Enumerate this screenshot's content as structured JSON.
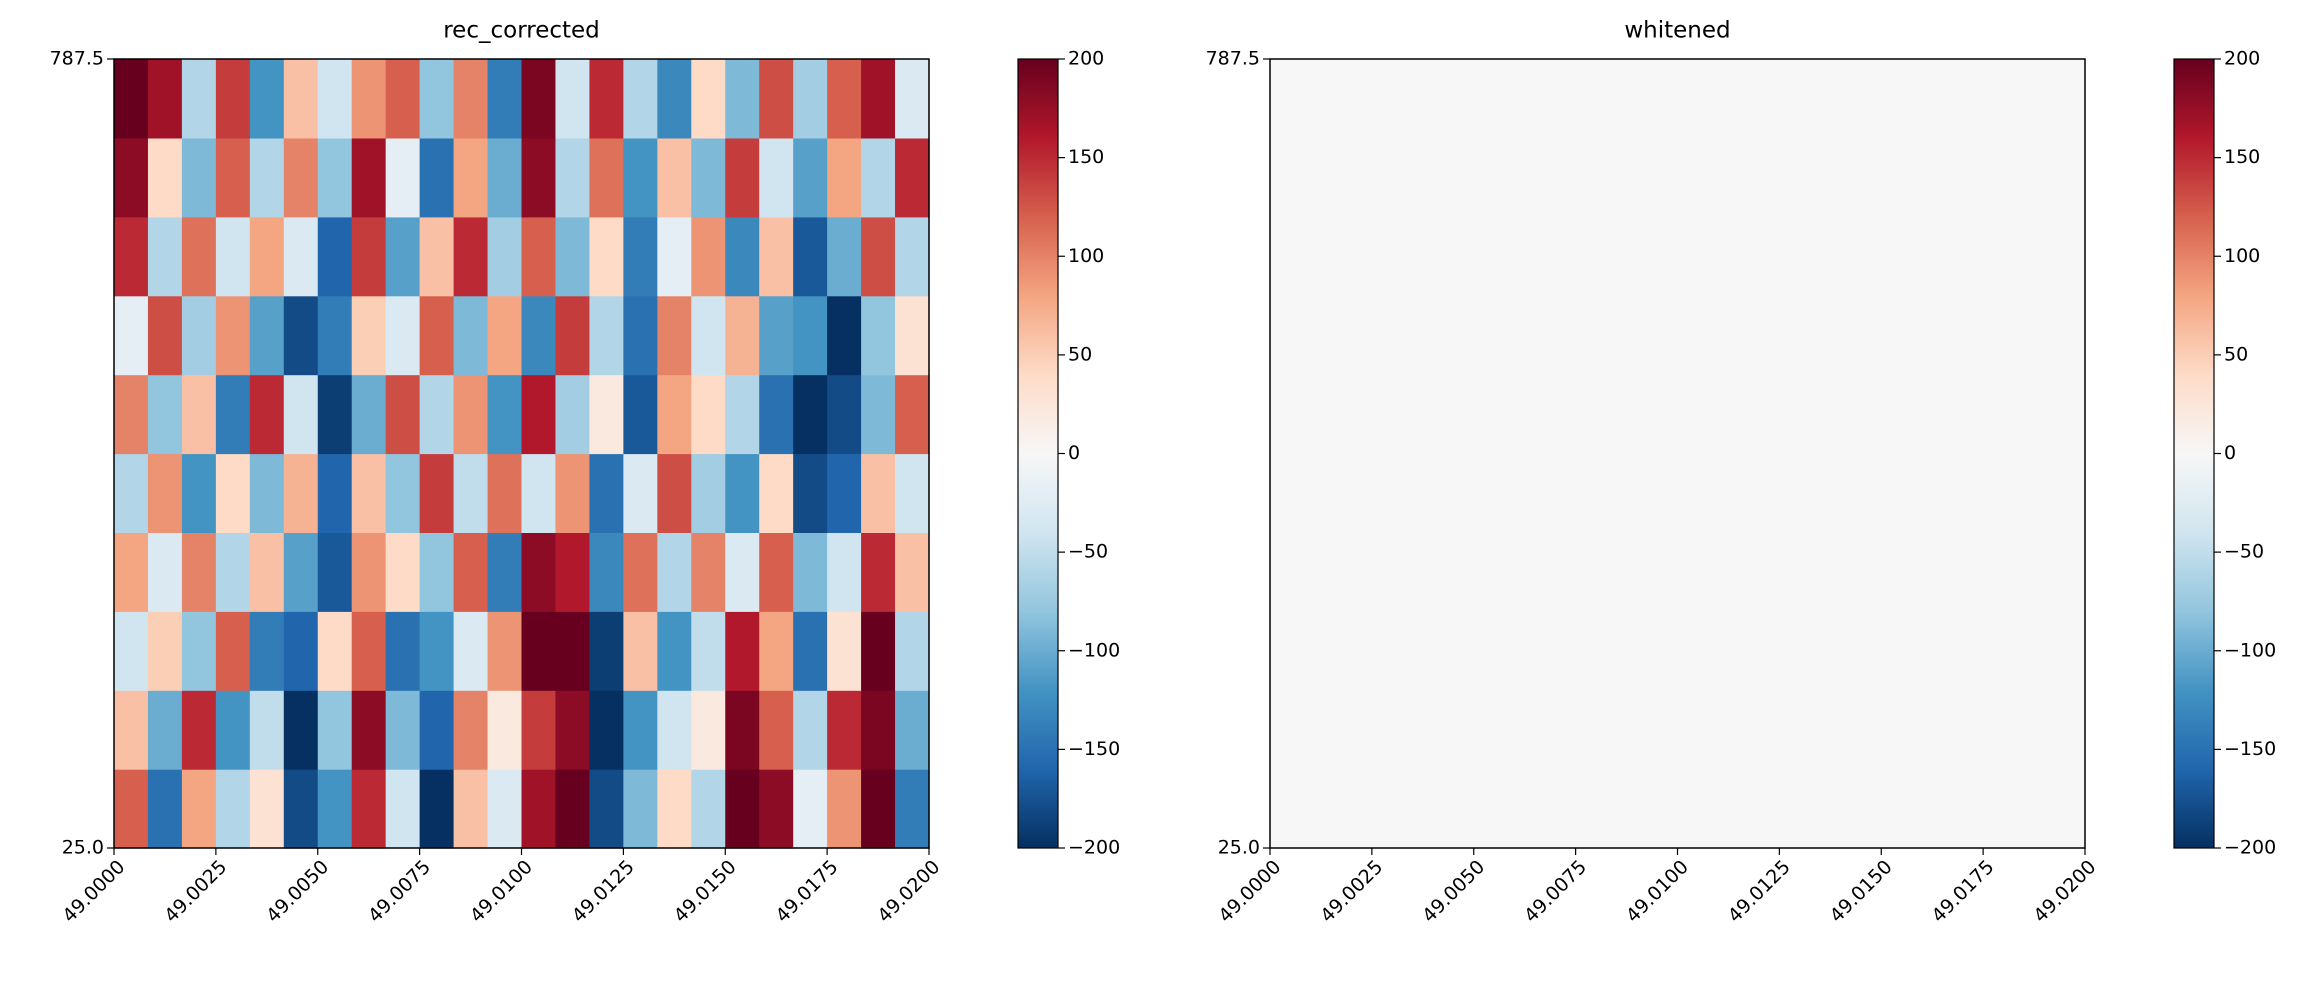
{
  "chart_data": [
    {
      "type": "heatmap",
      "title": "rec_corrected",
      "xlim": [
        49.0,
        49.02
      ],
      "ylim": [
        25.0,
        787.5
      ],
      "xticks": [
        {
          "value": 49.0,
          "label": "49.0000"
        },
        {
          "value": 49.0025,
          "label": "49.0025"
        },
        {
          "value": 49.005,
          "label": "49.0050"
        },
        {
          "value": 49.0075,
          "label": "49.0075"
        },
        {
          "value": 49.01,
          "label": "49.0100"
        },
        {
          "value": 49.0125,
          "label": "49.0125"
        },
        {
          "value": 49.015,
          "label": "49.0150"
        },
        {
          "value": 49.0175,
          "label": "49.0175"
        },
        {
          "value": 49.02,
          "label": "49.0200"
        }
      ],
      "yticks": [
        {
          "value": 25.0,
          "label": "25.0"
        },
        {
          "value": 787.5,
          "label": "787.5"
        }
      ],
      "colormap": [
        "#053061",
        "#2166ac",
        "#4393c3",
        "#92c5de",
        "#d1e5f0",
        "#f7f7f7",
        "#fddbc7",
        "#f4a582",
        "#d6604d",
        "#b2182b",
        "#67001f"
      ],
      "colorbar": {
        "lim": [
          -200,
          200
        ],
        "ticks": [
          {
            "value": -200,
            "label": "−200"
          },
          {
            "value": -150,
            "label": "−150"
          },
          {
            "value": -100,
            "label": "−100"
          },
          {
            "value": -50,
            "label": "−50"
          },
          0,
          50,
          100,
          150,
          200
        ]
      },
      "values": [
        [
          120,
          -150,
          80,
          -60,
          30,
          -180,
          -120,
          150,
          -40,
          -200,
          60,
          -30,
          170,
          200,
          -180,
          -90,
          40,
          -60,
          200,
          180,
          -20,
          90,
          200,
          -140
        ],
        [
          60,
          -100,
          150,
          -120,
          -50,
          -200,
          -80,
          180,
          -90,
          -160,
          100,
          20,
          140,
          180,
          -200,
          -120,
          -40,
          20,
          190,
          120,
          -60,
          150,
          190,
          -100
        ],
        [
          -40,
          50,
          -80,
          120,
          -140,
          -160,
          40,
          120,
          -150,
          -120,
          -30,
          90,
          200,
          200,
          -190,
          60,
          -120,
          -50,
          160,
          80,
          -150,
          30,
          200,
          -60
        ],
        [
          80,
          -30,
          100,
          -60,
          60,
          -110,
          -170,
          90,
          40,
          -80,
          120,
          -140,
          180,
          160,
          -130,
          110,
          -60,
          100,
          -30,
          120,
          -90,
          -40,
          150,
          60
        ],
        [
          -60,
          90,
          -120,
          40,
          -90,
          70,
          -160,
          60,
          -80,
          140,
          -50,
          110,
          -40,
          90,
          -150,
          -30,
          130,
          -70,
          -120,
          40,
          -180,
          -160,
          60,
          -40
        ],
        [
          100,
          -80,
          60,
          -140,
          150,
          -40,
          -190,
          -100,
          130,
          -60,
          90,
          -120,
          160,
          -70,
          20,
          -170,
          80,
          40,
          -60,
          -150,
          -200,
          -180,
          -90,
          120
        ],
        [
          -20,
          130,
          -70,
          90,
          -110,
          -180,
          -140,
          50,
          -30,
          120,
          -90,
          80,
          -130,
          140,
          -60,
          -150,
          100,
          -40,
          70,
          -110,
          -120,
          -200,
          -80,
          30
        ],
        [
          150,
          -60,
          110,
          -40,
          80,
          -30,
          -160,
          140,
          -110,
          60,
          150,
          -70,
          120,
          -90,
          40,
          -140,
          -20,
          90,
          -130,
          60,
          -170,
          -100,
          130,
          -60
        ],
        [
          180,
          40,
          -90,
          120,
          -60,
          100,
          -80,
          170,
          -20,
          -150,
          80,
          -100,
          180,
          -60,
          110,
          -120,
          60,
          -90,
          140,
          -40,
          -110,
          80,
          -60,
          150
        ],
        [
          200,
          170,
          -60,
          140,
          -120,
          60,
          -40,
          90,
          120,
          -80,
          100,
          -140,
          190,
          -40,
          150,
          -60,
          -130,
          40,
          -90,
          130,
          -70,
          120,
          170,
          -30
        ]
      ]
    },
    {
      "type": "heatmap",
      "title": "whitened",
      "xlim": [
        49.0,
        49.02
      ],
      "ylim": [
        25.0,
        787.5
      ],
      "xticks": [
        {
          "value": 49.0,
          "label": "49.0000"
        },
        {
          "value": 49.0025,
          "label": "49.0025"
        },
        {
          "value": 49.005,
          "label": "49.0050"
        },
        {
          "value": 49.0075,
          "label": "49.0075"
        },
        {
          "value": 49.01,
          "label": "49.0100"
        },
        {
          "value": 49.0125,
          "label": "49.0125"
        },
        {
          "value": 49.015,
          "label": "49.0150"
        },
        {
          "value": 49.0175,
          "label": "49.0175"
        },
        {
          "value": 49.02,
          "label": "49.0200"
        }
      ],
      "yticks": [
        {
          "value": 25.0,
          "label": "25.0"
        },
        {
          "value": 787.5,
          "label": "787.5"
        }
      ],
      "colormap": [
        "#053061",
        "#2166ac",
        "#4393c3",
        "#92c5de",
        "#d1e5f0",
        "#f7f7f7",
        "#fddbc7",
        "#f4a582",
        "#d6604d",
        "#b2182b",
        "#67001f"
      ],
      "colorbar": {
        "lim": [
          -200,
          200
        ],
        "ticks": [
          {
            "value": -200,
            "label": "−200"
          },
          {
            "value": -150,
            "label": "−150"
          },
          {
            "value": -100,
            "label": "−100"
          },
          {
            "value": -50,
            "label": "−50"
          },
          0,
          50,
          100,
          150,
          200
        ]
      },
      "values": [
        [
          0,
          0,
          0,
          0,
          0,
          0,
          0,
          0,
          0,
          0
        ],
        [
          0,
          0,
          0,
          0,
          0,
          0,
          0,
          0,
          0,
          0
        ],
        [
          0,
          0,
          0,
          0,
          0,
          0,
          0,
          0,
          0,
          0
        ],
        [
          0,
          0,
          0,
          0,
          0,
          0,
          0,
          0,
          0,
          0
        ],
        [
          0,
          0,
          0,
          0,
          0,
          0,
          0,
          0,
          0,
          0
        ]
      ]
    }
  ]
}
